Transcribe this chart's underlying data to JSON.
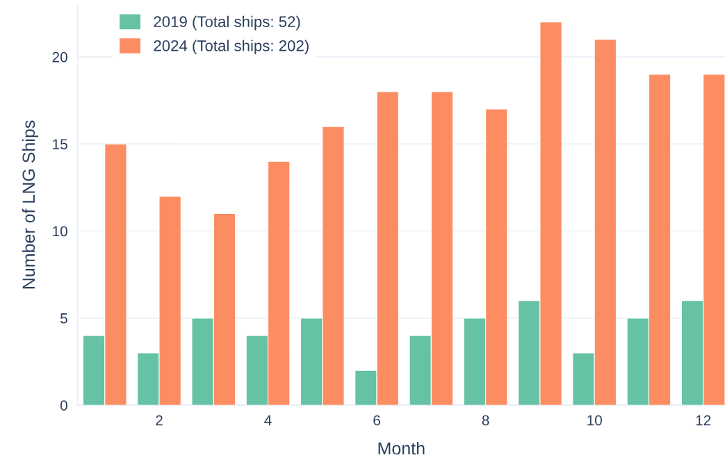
{
  "chart_data": {
    "type": "bar",
    "xlabel": "Month",
    "ylabel": "Number of LNG Ships",
    "x": [
      1,
      2,
      3,
      4,
      5,
      6,
      7,
      8,
      9,
      10,
      11,
      12
    ],
    "series": [
      {
        "name": "2019 (Total ships: 52)",
        "color": "#66c2a5",
        "values": [
          4,
          3,
          5,
          4,
          5,
          2,
          4,
          5,
          6,
          3,
          5,
          6
        ]
      },
      {
        "name": "2024 (Total ships: 202)",
        "color": "#fc8d62",
        "values": [
          15,
          12,
          11,
          14,
          16,
          18,
          18,
          17,
          22,
          21,
          19,
          19
        ]
      }
    ],
    "xlim": [
      0.5,
      12.4
    ],
    "xticks": [
      2,
      4,
      6,
      8,
      10,
      12
    ],
    "ylim": [
      0,
      23
    ],
    "yticks": [
      0,
      5,
      10,
      15,
      20
    ],
    "grid": "y",
    "legend": "top left"
  }
}
